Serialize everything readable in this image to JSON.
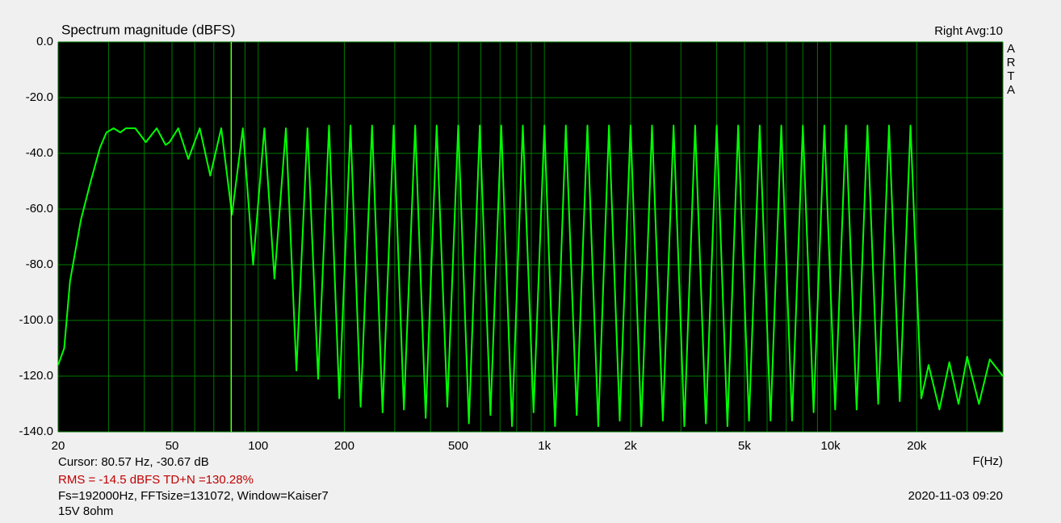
{
  "chart_data": {
    "type": "line",
    "title": "Spectrum magnitude (dBFS)",
    "channel_info": "Right  Avg:10",
    "side_letters": [
      "A",
      "R",
      "T",
      "A"
    ],
    "x_label": "F(Hz)",
    "cursor": {
      "x": 80.57,
      "label": "Cursor: 80.57 Hz, -30.67 dB",
      "color": "#e0e000"
    },
    "rms_info": "RMS =  -14.5 dBFS   TD+N =130.28%",
    "fft_info": "Fs=192000Hz, FFTsize=131072, Window=Kaiser7",
    "timestamp": "2020-11-03  09:20",
    "note": "15V 8ohm",
    "log_x": true,
    "grid": true,
    "color": "#00ff00",
    "xlim": [
      20,
      40000
    ],
    "ylim": [
      -140,
      0
    ],
    "xticks": [
      20,
      50,
      100,
      200,
      500,
      {
        "value": 1000,
        "label": "1k"
      },
      {
        "value": 2000,
        "label": "2k"
      },
      {
        "value": 5000,
        "label": "5k"
      },
      {
        "value": 10000,
        "label": "10k"
      },
      {
        "value": 20000,
        "label": "20k"
      }
    ],
    "xgrid_minor": [
      30,
      40,
      60,
      70,
      80,
      90,
      300,
      400,
      600,
      700,
      800,
      900,
      3000,
      4000,
      6000,
      7000,
      8000,
      9000,
      30000,
      40000
    ],
    "yticks": [
      {
        "value": 0,
        "label": "0.0"
      },
      {
        "value": -20,
        "label": "-20.0"
      },
      {
        "value": -40,
        "label": "-40.0"
      },
      {
        "value": -60,
        "label": "-60.0"
      },
      {
        "value": -80,
        "label": "-80.0"
      },
      {
        "value": -100,
        "label": "-100.0"
      },
      {
        "value": -120,
        "label": "-120.0"
      },
      {
        "value": -140,
        "label": "-140.0"
      }
    ],
    "x": [
      20,
      21,
      22,
      24,
      26,
      28,
      29.5,
      31.25,
      33,
      34.5,
      37.2,
      40.5,
      44.2,
      47.5,
      49,
      52.6,
      57,
      62.5,
      68,
      74.3,
      81,
      88.4,
      96,
      105.1,
      114,
      125,
      136,
      148.7,
      162,
      176.8,
      192,
      210.2,
      228,
      250,
      272,
      297.3,
      323,
      353.6,
      385,
      420.4,
      458,
      500,
      545,
      594.6,
      648,
      707.1,
      771,
      840.9,
      917,
      1000,
      1090,
      1189,
      1297,
      1414,
      1543,
      1682,
      1834,
      2000,
      2181,
      2378,
      2594,
      2828,
      3084,
      3364,
      3668,
      4000,
      4362,
      4757,
      5187,
      5657,
      6169,
      6727,
      7336,
      8000,
      8724,
      9514,
      10375,
      11314,
      12338,
      13454,
      14672,
      16000,
      17448,
      19027,
      20750,
      22000,
      24000,
      26000,
      28000,
      30000,
      33000,
      36000,
      40000
    ],
    "values": [
      -116,
      -110,
      -86,
      -64,
      -50,
      -38,
      -32.5,
      -31,
      -32.5,
      -31,
      -31,
      -36,
      -31,
      -37,
      -36,
      -31,
      -42,
      -31,
      -48,
      -31,
      -62,
      -31,
      -80,
      -31,
      -85,
      -31,
      -118,
      -31,
      -121,
      -30,
      -128,
      -30,
      -131,
      -30,
      -133,
      -30,
      -132,
      -30,
      -135,
      -30,
      -131,
      -30,
      -137,
      -30,
      -134,
      -30,
      -138,
      -30,
      -133,
      -30,
      -138,
      -30,
      -134,
      -30,
      -138,
      -30,
      -136,
      -30,
      -138,
      -30,
      -136,
      -30,
      -138,
      -30,
      -137,
      -30,
      -138,
      -30,
      -136,
      -30,
      -136,
      -30,
      -136,
      -30,
      -133,
      -30,
      -132,
      -30,
      -132,
      -30,
      -130,
      -30,
      -129,
      -30,
      -128,
      -116,
      -132,
      -115,
      -130,
      -113,
      -130,
      -114,
      -120
    ]
  }
}
